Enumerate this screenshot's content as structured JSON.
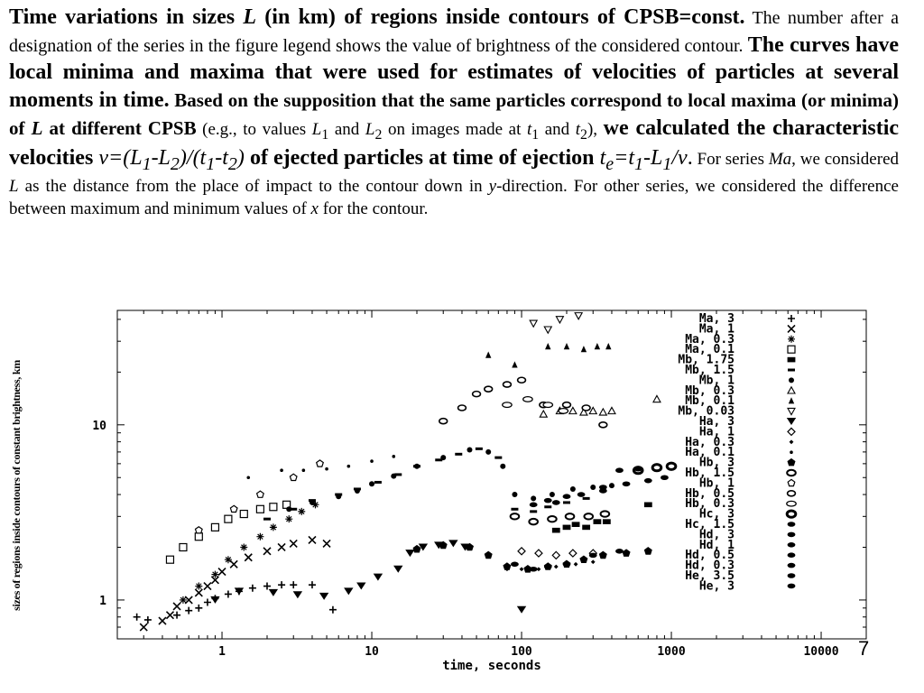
{
  "caption": {
    "p1": "Time variations in sizes ",
    "p2": "L",
    "p3": " (in km) of regions inside contours of CPSB=const.",
    "p4": " The number after a designation of the series in the figure legend shows the value of brightness of the considered contour. ",
    "p5": "The curves have local minima and maxima that were used for estimates of velocities of particles at several moments in time.",
    "p6": " Based on the supposition that the same particles correspond to local maxima (or minima) of ",
    "p7": "L",
    "p8": " at different CPSB",
    "p9": " (e.g., to values ",
    "p10": "L",
    "p11": "1",
    "p12": " and ",
    "p13": "L",
    "p14": "2",
    "p15": " on images made at ",
    "p16": "t",
    "p17": "1",
    "p18": " and ",
    "p19": "t",
    "p20": "2",
    "p21": "), ",
    "p22": "we calculated the characteristic velocities ",
    "p23": "v=(L",
    "p24": "1",
    "p25": "-L",
    "p26": "2",
    "p27": ")/(t",
    "p28": "1",
    "p29": "-t",
    "p30": "2",
    "p31": ")",
    "p32": " of ejected particles at time of ejection ",
    "p33": "t",
    "p34": "e",
    "p35": "=t",
    "p36": "1",
    "p37": "-L",
    "p38": "1",
    "p39": "/v",
    "p40": ".",
    "p41": " For series ",
    "p42": "Ma",
    "p43": ", we considered ",
    "p44": "L",
    "p45": " as the distance from the place of impact to the contour down in ",
    "p46": "y",
    "p47": "-direction. For other series, we considered the difference between maximum and minimum values of ",
    "p48": "x",
    "p49": " for the contour."
  },
  "page_number": "7",
  "chart_data": {
    "type": "scatter",
    "xscale": "log",
    "yscale": "log",
    "xlim": [
      0.2,
      20000
    ],
    "ylim": [
      0.6,
      45
    ],
    "xlabel": "time, seconds",
    "ylabel": "sizes of regions inside contours of constant brightness, km",
    "x_ticks": [
      "1",
      "10",
      "100",
      "1000",
      "10000"
    ],
    "y_ticks": [
      "1",
      "10"
    ],
    "legend_position": "right",
    "series": [
      {
        "name": "Ma, 3",
        "marker": "plus",
        "points": [
          [
            0.27,
            0.8
          ],
          [
            0.32,
            0.77
          ],
          [
            0.5,
            0.82
          ],
          [
            0.6,
            0.87
          ],
          [
            0.7,
            0.9
          ],
          [
            0.8,
            0.97
          ],
          [
            0.9,
            1.02
          ],
          [
            1.1,
            1.08
          ],
          [
            1.3,
            1.12
          ],
          [
            1.6,
            1.17
          ],
          [
            2.0,
            1.2
          ],
          [
            2.5,
            1.22
          ],
          [
            3.0,
            1.22
          ],
          [
            4.0,
            1.22
          ],
          [
            5.5,
            0.88
          ]
        ]
      },
      {
        "name": "Ma, 1",
        "marker": "x",
        "points": [
          [
            0.3,
            0.7
          ],
          [
            0.4,
            0.76
          ],
          [
            0.45,
            0.82
          ],
          [
            0.5,
            0.92
          ],
          [
            0.6,
            1.0
          ],
          [
            0.7,
            1.1
          ],
          [
            0.8,
            1.2
          ],
          [
            0.9,
            1.3
          ],
          [
            1.0,
            1.45
          ],
          [
            1.2,
            1.6
          ],
          [
            1.5,
            1.75
          ],
          [
            2.0,
            1.9
          ],
          [
            2.5,
            2.0
          ],
          [
            3.0,
            2.1
          ],
          [
            4.0,
            2.2
          ],
          [
            5.0,
            2.1
          ]
        ]
      },
      {
        "name": "Ma, 0.3",
        "marker": "star",
        "points": [
          [
            0.55,
            1.0
          ],
          [
            0.7,
            1.2
          ],
          [
            0.9,
            1.4
          ],
          [
            1.1,
            1.7
          ],
          [
            1.4,
            2.0
          ],
          [
            1.8,
            2.3
          ],
          [
            2.2,
            2.6
          ],
          [
            2.8,
            2.9
          ],
          [
            3.4,
            3.2
          ],
          [
            4.2,
            3.5
          ]
        ]
      },
      {
        "name": "Ma, 0.1",
        "marker": "square-open",
        "points": [
          [
            0.45,
            1.7
          ],
          [
            0.55,
            2.0
          ],
          [
            0.7,
            2.3
          ],
          [
            0.9,
            2.6
          ],
          [
            1.1,
            2.9
          ],
          [
            1.4,
            3.1
          ],
          [
            1.8,
            3.3
          ],
          [
            2.2,
            3.4
          ],
          [
            2.7,
            3.5
          ]
        ]
      },
      {
        "name": "Mb, 1.75",
        "marker": "square-filled",
        "points": [
          [
            170,
            2.5
          ],
          [
            200,
            2.6
          ],
          [
            230,
            2.7
          ],
          [
            270,
            2.6
          ],
          [
            320,
            2.8
          ],
          [
            370,
            2.8
          ],
          [
            700,
            3.5
          ]
        ]
      },
      {
        "name": "Mb, 1.5",
        "marker": "dash",
        "points": [
          [
            2.0,
            2.9
          ],
          [
            3.0,
            3.3
          ],
          [
            4.0,
            3.7
          ],
          [
            6.0,
            4.0
          ],
          [
            8.0,
            4.3
          ],
          [
            11.0,
            4.7
          ],
          [
            15.0,
            5.2
          ],
          [
            20.0,
            5.8
          ],
          [
            28.0,
            6.3
          ],
          [
            38.0,
            6.8
          ],
          [
            52.0,
            7.3
          ],
          [
            70.0,
            6.5
          ],
          [
            90.0,
            3.3
          ],
          [
            120.0,
            3.2
          ],
          [
            150.0,
            3.4
          ],
          [
            200.0,
            3.6
          ],
          [
            270.0,
            3.8
          ]
        ]
      },
      {
        "name": "Mb, 1",
        "marker": "circle-filled",
        "points": [
          [
            2.8,
            3.3
          ],
          [
            4.0,
            3.6
          ],
          [
            6.0,
            3.9
          ],
          [
            8.0,
            4.2
          ],
          [
            10.0,
            4.6
          ],
          [
            14.0,
            5.1
          ],
          [
            20.0,
            5.8
          ],
          [
            30.0,
            6.5
          ],
          [
            45.0,
            7.2
          ],
          [
            60.0,
            7.0
          ],
          [
            75.0,
            5.8
          ],
          [
            90.0,
            4.0
          ],
          [
            120.0,
            3.8
          ],
          [
            160.0,
            4.0
          ],
          [
            220.0,
            4.3
          ],
          [
            300.0,
            4.4
          ],
          [
            400.0,
            4.5
          ]
        ]
      },
      {
        "name": "Mb, 0.3",
        "marker": "triangle-open",
        "points": [
          [
            140,
            11.5
          ],
          [
            180,
            12.0
          ],
          [
            220,
            12.0
          ],
          [
            260,
            11.8
          ],
          [
            300,
            12.0
          ],
          [
            350,
            11.8
          ],
          [
            400,
            12.0
          ],
          [
            800,
            14.0
          ]
        ]
      },
      {
        "name": "Mb, 0.1",
        "marker": "triangle-filled",
        "points": [
          [
            60,
            25.0
          ],
          [
            90,
            22.0
          ],
          [
            150,
            28.0
          ],
          [
            200,
            28.0
          ],
          [
            260,
            27.0
          ],
          [
            320,
            28.0
          ],
          [
            380,
            28.0
          ]
        ]
      },
      {
        "name": "Mb, 0.03",
        "marker": "triangle-down-open",
        "points": [
          [
            120,
            38.0
          ],
          [
            150,
            35.0
          ],
          [
            180,
            40.0
          ],
          [
            240,
            42.0
          ]
        ]
      },
      {
        "name": "Ha, 3",
        "marker": "triangle-down-filled",
        "points": [
          [
            0.9,
            1.0
          ],
          [
            1.3,
            1.12
          ],
          [
            2.2,
            1.1
          ],
          [
            3.2,
            1.07
          ],
          [
            4.8,
            1.05
          ],
          [
            7.0,
            1.12
          ],
          [
            8.5,
            1.2
          ],
          [
            11.0,
            1.35
          ],
          [
            15.0,
            1.5
          ],
          [
            18.0,
            1.85
          ],
          [
            22.0,
            2.0
          ],
          [
            28.0,
            2.05
          ],
          [
            35.0,
            2.1
          ],
          [
            42.0,
            2.0
          ],
          [
            100.0,
            0.88
          ]
        ]
      },
      {
        "name": "Ha, 1",
        "marker": "diamond-open",
        "points": [
          [
            100,
            1.9
          ],
          [
            130,
            1.85
          ],
          [
            170,
            1.8
          ],
          [
            220,
            1.85
          ],
          [
            300,
            1.85
          ]
        ]
      },
      {
        "name": "Ha, 0.3",
        "marker": "diamond-small",
        "points": [
          [
            80,
            1.5
          ],
          [
            100,
            1.5
          ],
          [
            130,
            1.5
          ],
          [
            170,
            1.55
          ],
          [
            230,
            1.6
          ],
          [
            300,
            1.65
          ]
        ]
      },
      {
        "name": "Ha, 0.1",
        "marker": "dot",
        "points": [
          [
            1.5,
            5.0
          ],
          [
            2.5,
            5.5
          ],
          [
            3.5,
            5.5
          ],
          [
            5.0,
            5.6
          ],
          [
            7.0,
            5.8
          ],
          [
            10.0,
            6.2
          ],
          [
            14.0,
            6.6
          ]
        ]
      },
      {
        "name": "Hb, 3",
        "marker": "pentagon-filled",
        "points": [
          [
            20,
            1.95
          ],
          [
            30,
            2.05
          ],
          [
            45,
            2.0
          ],
          [
            60,
            1.8
          ],
          [
            80,
            1.55
          ],
          [
            110,
            1.5
          ],
          [
            150,
            1.55
          ],
          [
            200,
            1.6
          ],
          [
            260,
            1.7
          ],
          [
            350,
            1.8
          ],
          [
            500,
            1.85
          ],
          [
            700,
            1.9
          ]
        ]
      },
      {
        "name": "Hb, 1.5",
        "marker": "ellipse-open",
        "points": [
          [
            90,
            3.0
          ],
          [
            120,
            2.8
          ],
          [
            160,
            2.9
          ],
          [
            210,
            3.0
          ],
          [
            280,
            3.0
          ],
          [
            360,
            3.1
          ]
        ]
      },
      {
        "name": "Hb, 1",
        "marker": "pentagon-open",
        "points": [
          [
            0.7,
            2.5
          ],
          [
            1.2,
            3.3
          ],
          [
            1.8,
            4.0
          ],
          [
            3.0,
            5.0
          ],
          [
            4.5,
            6.0
          ]
        ]
      },
      {
        "name": "Hb, 0.5",
        "marker": "ellipse-wide",
        "points": [
          [
            30,
            10.5
          ],
          [
            40,
            12.5
          ],
          [
            50,
            15.0
          ],
          [
            60,
            16.0
          ],
          [
            80,
            17.0
          ],
          [
            100,
            18.0
          ],
          [
            140,
            13.0
          ],
          [
            200,
            13.0
          ],
          [
            270,
            12.5
          ],
          [
            350,
            10.0
          ]
        ]
      },
      {
        "name": "Hb, 0.3",
        "marker": "ellipse-open-wide",
        "points": [
          [
            80,
            13.0
          ],
          [
            110,
            14.0
          ],
          [
            150,
            13.0
          ],
          [
            190,
            12.0
          ]
        ]
      },
      {
        "name": "Hc, 3",
        "marker": "ring-bold",
        "points": [
          [
            600,
            5.5
          ],
          [
            800,
            5.7
          ],
          [
            1000,
            5.8
          ]
        ]
      },
      {
        "name": "Hc, 1.5",
        "marker": "ellipse-filled",
        "points": [
          [
            90,
            1.6
          ],
          [
            120,
            1.5
          ],
          [
            150,
            1.55
          ],
          [
            200,
            1.6
          ],
          [
            300,
            1.8
          ],
          [
            450,
            1.9
          ]
        ]
      },
      {
        "name": "Hd, 3",
        "marker": "ellipse-filled",
        "points": [
          [
            450,
            5.5
          ],
          [
            600,
            5.6
          ]
        ]
      },
      {
        "name": "Hd, 1",
        "marker": "ellipse-filled",
        "points": [
          [
            350,
            4.4
          ],
          [
            500,
            4.6
          ]
        ]
      },
      {
        "name": "Hd, 0.5",
        "marker": "ellipse-filled",
        "points": [
          [
            250,
            4.0
          ],
          [
            350,
            4.2
          ]
        ]
      },
      {
        "name": "Hd, 0.3",
        "marker": "ellipse-filled",
        "points": [
          [
            150,
            3.7
          ],
          [
            200,
            3.9
          ]
        ]
      },
      {
        "name": "He, 3.5",
        "marker": "ellipse-filled",
        "points": [
          [
            700,
            4.8
          ],
          [
            900,
            5.0
          ]
        ]
      },
      {
        "name": "He, 3",
        "marker": "ellipse-filled",
        "points": [
          [
            120,
            3.5
          ],
          [
            170,
            3.6
          ]
        ]
      }
    ]
  }
}
